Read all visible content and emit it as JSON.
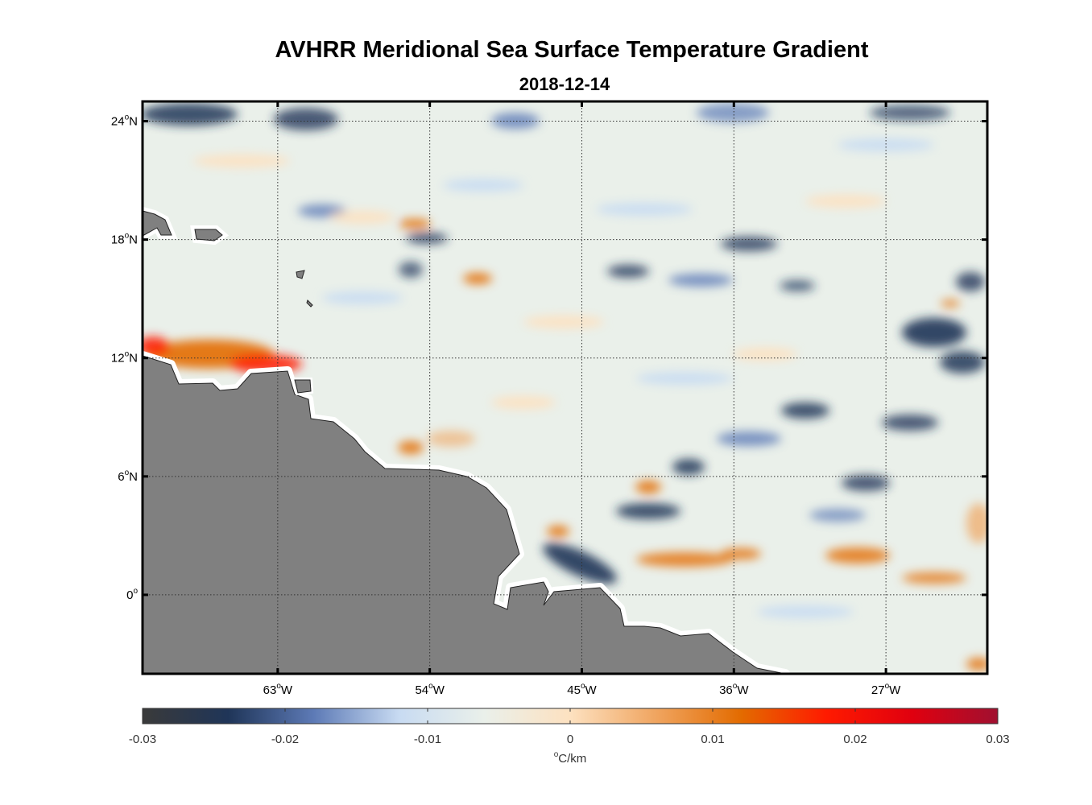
{
  "title": "AVHRR Meridional Sea Surface Temperature Gradient",
  "date": "2018-12-14",
  "map": {
    "lon_range": [
      -71,
      -21
    ],
    "lat_range": [
      -4,
      25
    ],
    "x_ticks": [
      {
        "lon": -63,
        "deg": "63",
        "hemi": "W"
      },
      {
        "lon": -54,
        "deg": "54",
        "hemi": "W"
      },
      {
        "lon": -45,
        "deg": "45",
        "hemi": "W"
      },
      {
        "lon": -36,
        "deg": "36",
        "hemi": "W"
      },
      {
        "lon": -27,
        "deg": "27",
        "hemi": "W"
      }
    ],
    "y_ticks": [
      {
        "lat": 24,
        "deg": "24",
        "hemi": "N"
      },
      {
        "lat": 18,
        "deg": "18",
        "hemi": "N"
      },
      {
        "lat": 12,
        "deg": "12",
        "hemi": "N"
      },
      {
        "lat": 6,
        "deg": "6",
        "hemi": "N"
      },
      {
        "lat": 0,
        "deg": "0",
        "hemi": ""
      }
    ],
    "grid": "dotted",
    "land_color": "#808080"
  },
  "colorbar": {
    "range": [
      -0.03,
      0.03
    ],
    "tick_labels": [
      "-0.03",
      "-0.02",
      "-0.01",
      "0",
      "0.01",
      "0.02",
      "0.03"
    ],
    "unit_deg": "o",
    "unit_text": "C/km",
    "colors": [
      "#3a3a3a",
      "#1f3558",
      "#5d7ab6",
      "#c8dbf2",
      "#eaf0ea",
      "#fde1c0",
      "#f0a560",
      "#e36b00",
      "#ff1a00",
      "#e0000f",
      "#a01030"
    ]
  }
}
